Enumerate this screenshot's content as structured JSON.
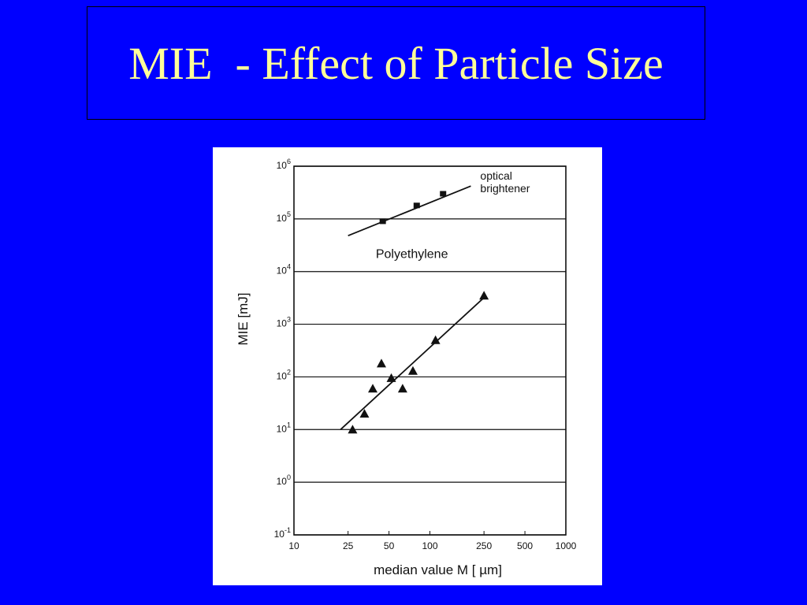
{
  "slide": {
    "title": "MIE  - Effect of Particle Size",
    "colors": {
      "background": "#0000ff",
      "title": "#ffff99",
      "panel": "#ffffff",
      "ink": "#111111"
    }
  },
  "chart_data": {
    "type": "scatter",
    "title": "",
    "xlabel": "median value M  [ µm]",
    "ylabel": "MIE [mJ]",
    "x_scale": "log",
    "y_scale": "log",
    "xlim": [
      10,
      1000
    ],
    "ylim": [
      0.1,
      1000000
    ],
    "x_ticks": [
      10,
      25,
      50,
      100,
      250,
      500,
      1000
    ],
    "x_tick_labels": [
      "10",
      "25",
      "50",
      "100",
      "250",
      "500",
      "1000"
    ],
    "y_ticks": [
      {
        "value": 0.1,
        "base": "10",
        "exp": "-1"
      },
      {
        "value": 1,
        "base": "10",
        "exp": "0"
      },
      {
        "value": 10,
        "base": "10",
        "exp": "1"
      },
      {
        "value": 100,
        "base": "10",
        "exp": "2"
      },
      {
        "value": 1000,
        "base": "10",
        "exp": "3"
      },
      {
        "value": 10000,
        "base": "10",
        "exp": "4"
      },
      {
        "value": 100000,
        "base": "10",
        "exp": "5"
      },
      {
        "value": 1000000,
        "base": "10",
        "exp": "6"
      }
    ],
    "grid": "horizontal",
    "series": [
      {
        "name": "optical brightener",
        "label_lines": [
          "optical",
          "brightener"
        ],
        "marker": "square",
        "points": [
          [
            45,
            90000
          ],
          [
            80,
            180000
          ],
          [
            125,
            300000
          ]
        ],
        "fit": [
          [
            25,
            48000
          ],
          [
            200,
            420000
          ]
        ]
      },
      {
        "name": "Polyethylene",
        "label_lines": [
          "Polyethylene"
        ],
        "marker": "triangle",
        "points": [
          [
            27,
            10
          ],
          [
            33,
            20
          ],
          [
            38,
            60
          ],
          [
            44,
            180
          ],
          [
            52,
            95
          ],
          [
            63,
            60
          ],
          [
            75,
            130
          ],
          [
            110,
            500
          ],
          [
            250,
            3500
          ]
        ],
        "fit": [
          [
            22,
            10
          ],
          [
            250,
            3200
          ]
        ]
      }
    ]
  }
}
